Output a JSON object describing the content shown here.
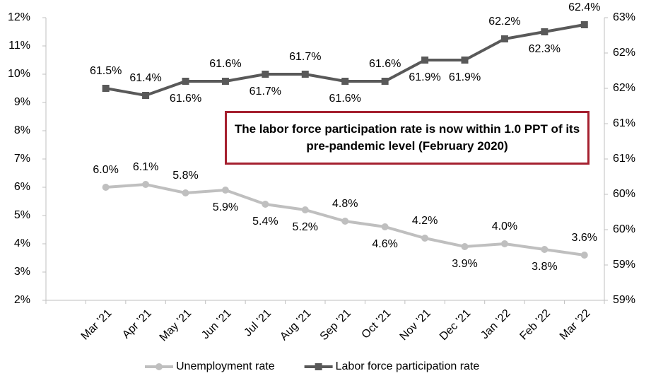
{
  "chart_data": {
    "type": "line",
    "annotation": "The labor force participation rate is now within 1.0 PPT of its pre-pandemic level (February 2020)",
    "categories": [
      "Mar ’21",
      "Apr ’21",
      "May ’21",
      "Jun ’21",
      "Jul ’21",
      "Aug ’21",
      "Sep ’21",
      "Oct ’21",
      "Nov ’21",
      "Dec ’21",
      "Jan ’22",
      "Feb ’22",
      "Mar ’22"
    ],
    "series": [
      {
        "name": "Unemployment rate",
        "color": "#bfbfbf",
        "marker": "circle",
        "values": [
          6.0,
          6.1,
          5.8,
          5.9,
          5.4,
          5.2,
          4.8,
          4.6,
          4.2,
          3.9,
          4.0,
          3.8,
          3.6
        ],
        "value_labels": [
          "6.0%",
          "6.1%",
          "5.8%",
          "5.9%",
          "5.4%",
          "5.2%",
          "4.8%",
          "4.6%",
          "4.2%",
          "3.9%",
          "4.0%",
          "3.8%",
          "3.6%"
        ]
      },
      {
        "name": "Labor force participation rate",
        "color": "#595959",
        "marker": "square",
        "axis": "y2",
        "values": [
          61.5,
          61.4,
          61.6,
          61.6,
          61.7,
          61.7,
          61.6,
          61.6,
          61.9,
          61.9,
          62.2,
          62.3,
          62.4
        ],
        "value_labels": [
          "61.5%",
          "61.4%",
          "61.6%",
          "61.6%",
          "61.7%",
          "61.7%",
          "61.6%",
          "61.6%",
          "61.9%",
          "61.9%",
          "62.2%",
          "62.3%",
          "62.4%"
        ]
      }
    ],
    "ylim": [
      2,
      12
    ],
    "yticks": [
      {
        "value": 2,
        "label": "2%"
      },
      {
        "value": 3,
        "label": "3%"
      },
      {
        "value": 4,
        "label": "4%"
      },
      {
        "value": 5,
        "label": "5%"
      },
      {
        "value": 6,
        "label": "6%"
      },
      {
        "value": 7,
        "label": "7%"
      },
      {
        "value": 8,
        "label": "8%"
      },
      {
        "value": 9,
        "label": "9%"
      },
      {
        "value": 10,
        "label": "10%"
      },
      {
        "value": 11,
        "label": "11%"
      },
      {
        "value": 12,
        "label": "12%"
      }
    ],
    "y2lim": [
      58.5,
      62.5
    ],
    "y2ticks": [
      {
        "value": 58.5,
        "label": "59%"
      },
      {
        "value": 59,
        "label": "59%"
      },
      {
        "value": 59.5,
        "label": "60%"
      },
      {
        "value": 60,
        "label": "60%"
      },
      {
        "value": 60.5,
        "label": "61%"
      },
      {
        "value": 61,
        "label": "61%"
      },
      {
        "value": 61.5,
        "label": "62%"
      },
      {
        "value": 62,
        "label": "62%"
      },
      {
        "value": 62.5,
        "label": "63%"
      }
    ],
    "legend": "bottom",
    "grid": false
  }
}
